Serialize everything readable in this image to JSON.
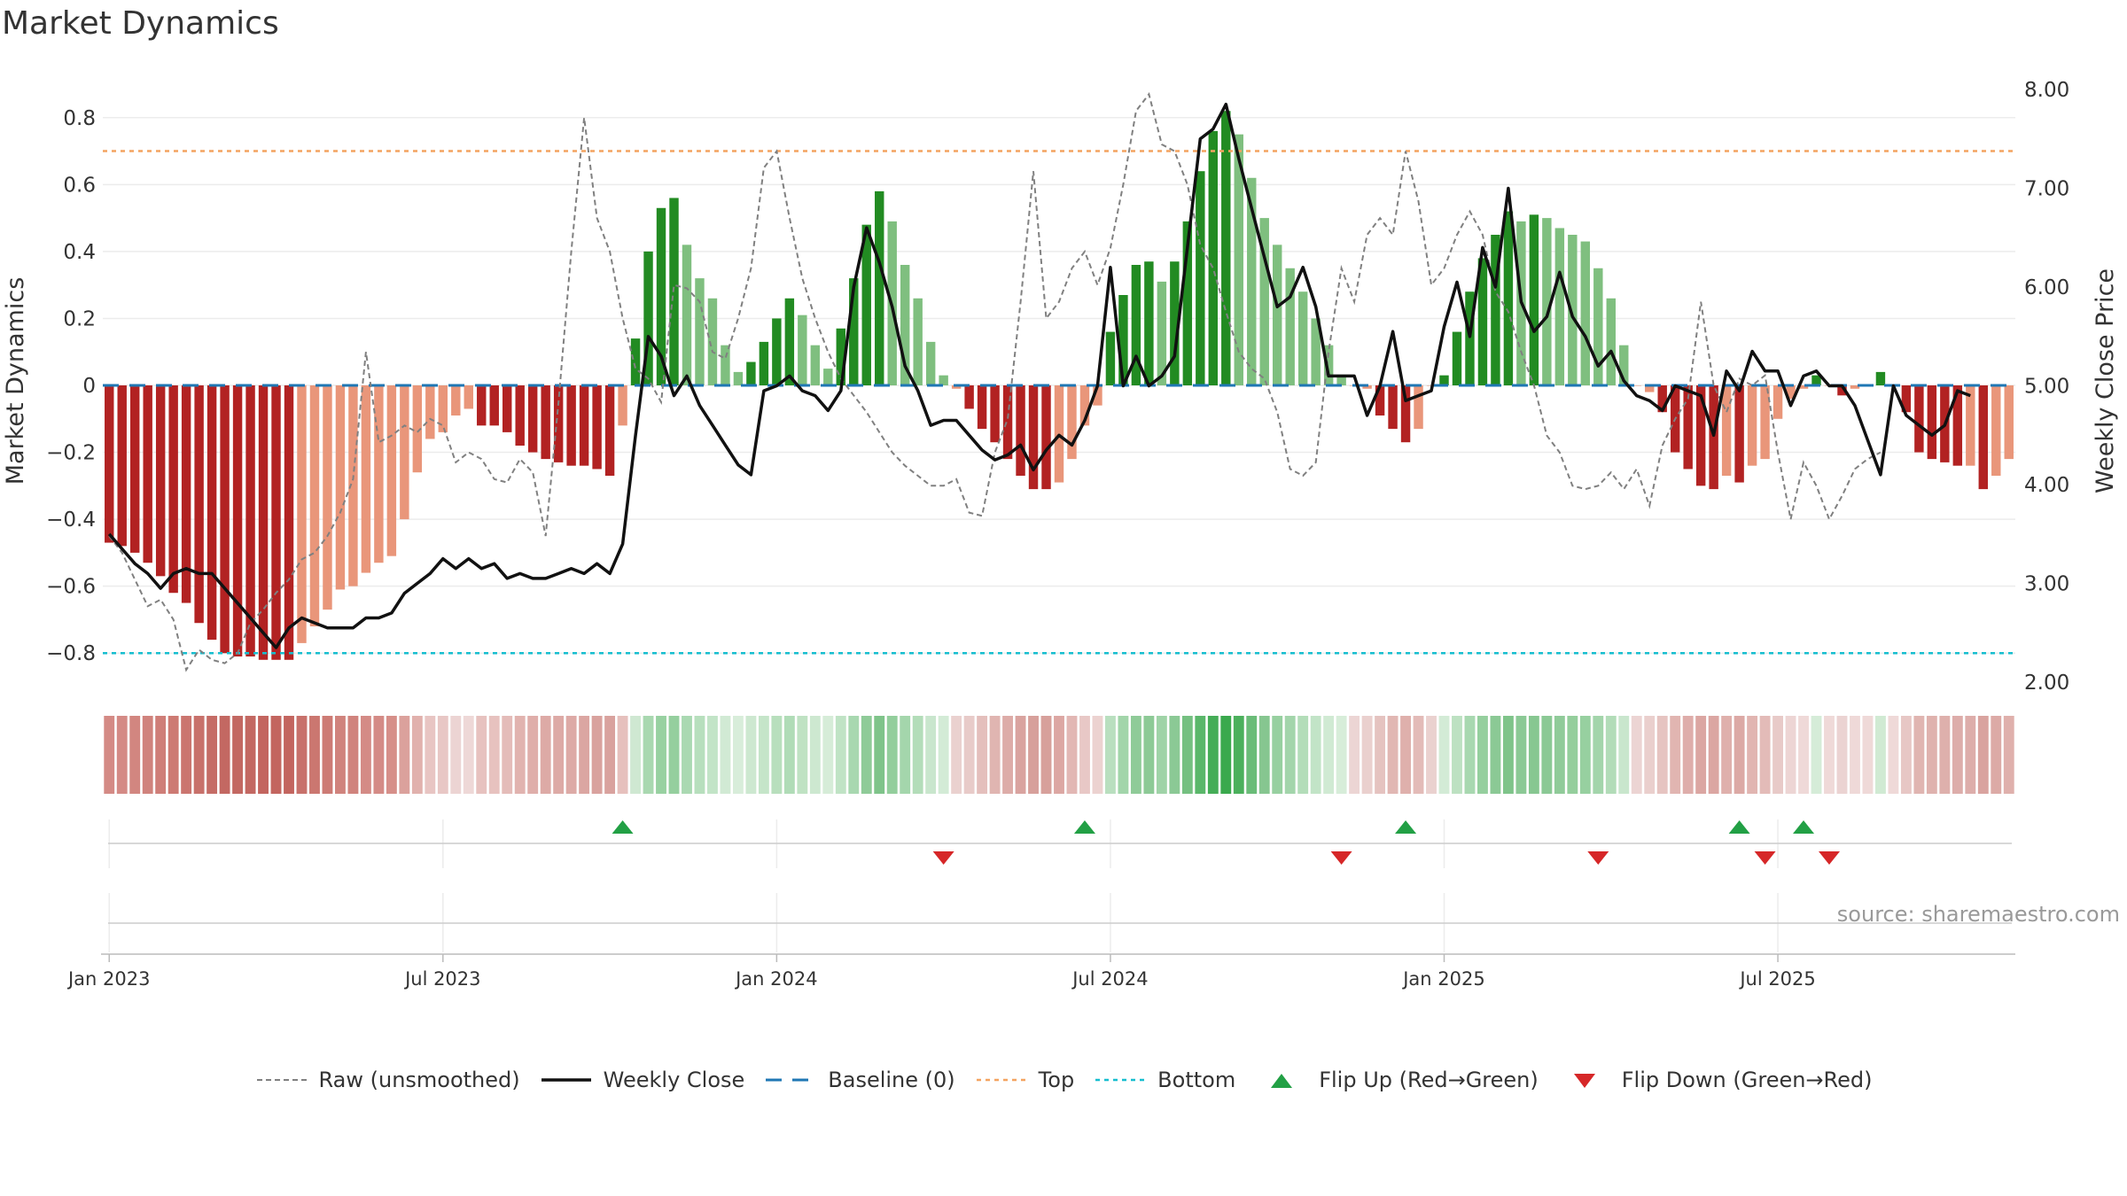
{
  "title": "Market Dynamics",
  "source": "source: sharemaestro.com",
  "chart_data": {
    "type": "bar",
    "y_left_label": "Market Dynamics",
    "y_right_label": "Weekly Close Price",
    "ylim_left": [
      -0.9,
      0.9
    ],
    "ylim_right": [
      2.0,
      8.0
    ],
    "left_ticks": [
      "0.8",
      "0.6",
      "0.4",
      "0.2",
      "0",
      "−0.2",
      "−0.4",
      "−0.6",
      "−0.8"
    ],
    "left_tick_values": [
      0.8,
      0.6,
      0.4,
      0.2,
      0,
      -0.2,
      -0.4,
      -0.6,
      -0.8
    ],
    "right_ticks": [
      "8.00",
      "7.00",
      "6.00",
      "5.00",
      "4.00",
      "3.00",
      "2.00"
    ],
    "right_tick_values": [
      8,
      7,
      6,
      5,
      4,
      3,
      2
    ],
    "x_ticks": [
      {
        "label": "Jan 2023",
        "week": 1
      },
      {
        "label": "Jul 2023",
        "week": 27
      },
      {
        "label": "Jan 2024",
        "week": 53
      },
      {
        "label": "Jul 2024",
        "week": 79
      },
      {
        "label": "Jan 2025",
        "week": 105
      },
      {
        "label": "Jul 2025",
        "week": 131
      }
    ],
    "top_line": 0.7,
    "bottom_line": -0.8,
    "baseline": 0,
    "colors": {
      "strong_red": "#b22222",
      "light_red": "#e9967a",
      "strong_green": "#228b22",
      "light_green": "#7fbf7f",
      "top_line": "#f4a460",
      "bottom_line": "#17becf",
      "baseline": "#1f77b4",
      "raw": "#808080",
      "close": "#111111",
      "flip_up": "#22a045",
      "flip_down": "#d62728"
    },
    "series": [
      {
        "name": "Raw (unsmoothed)",
        "values": [
          -0.45,
          -0.5,
          -0.58,
          -0.66,
          -0.64,
          -0.7,
          -0.85,
          -0.79,
          -0.82,
          -0.83,
          -0.8,
          -0.71,
          -0.67,
          -0.62,
          -0.58,
          -0.52,
          -0.5,
          -0.45,
          -0.38,
          -0.28,
          0.1,
          -0.17,
          -0.15,
          -0.12,
          -0.14,
          -0.1,
          -0.12,
          -0.23,
          -0.2,
          -0.22,
          -0.28,
          -0.29,
          -0.22,
          -0.26,
          -0.45,
          -0.05,
          0.4,
          0.8,
          0.5,
          0.4,
          0.2,
          0.05,
          0.02,
          -0.05,
          0.3,
          0.29,
          0.25,
          0.1,
          0.08,
          0.2,
          0.35,
          0.65,
          0.7,
          0.5,
          0.32,
          0.2,
          0.1,
          0.02,
          -0.03,
          -0.08,
          -0.14,
          -0.2,
          -0.24,
          -0.27,
          -0.3,
          -0.3,
          -0.28,
          -0.38,
          -0.39,
          -0.2,
          -0.1,
          0.25,
          0.64,
          0.2,
          0.25,
          0.35,
          0.4,
          0.3,
          0.41,
          0.6,
          0.82,
          0.87,
          0.72,
          0.7,
          0.6,
          0.42,
          0.35,
          0.22,
          0.1,
          0.05,
          0.02,
          -0.08,
          -0.25,
          -0.27,
          -0.23,
          0.1,
          0.35,
          0.25,
          0.45,
          0.5,
          0.45,
          0.7,
          0.55,
          0.3,
          0.35,
          0.45,
          0.52,
          0.45,
          0.28,
          0.22,
          0.1,
          0.0,
          -0.15,
          -0.2,
          -0.3,
          -0.31,
          -0.3,
          -0.26,
          -0.31,
          -0.25,
          -0.36,
          -0.18,
          -0.1,
          -0.04,
          0.25,
          0.0,
          -0.08,
          0.02,
          0.0,
          0.03,
          -0.2,
          -0.4,
          -0.23,
          -0.3,
          -0.4,
          -0.33,
          -0.25,
          -0.22,
          -0.2
        ]
      },
      {
        "name": "Weekly Close",
        "values": [
          3.5,
          3.35,
          3.2,
          3.1,
          2.95,
          3.1,
          3.15,
          3.1,
          3.1,
          2.95,
          2.8,
          2.65,
          2.5,
          2.35,
          2.55,
          2.65,
          2.6,
          2.55,
          2.55,
          2.55,
          2.65,
          2.65,
          2.7,
          2.9,
          3.0,
          3.1,
          3.25,
          3.15,
          3.25,
          3.15,
          3.2,
          3.05,
          3.1,
          3.05,
          3.05,
          3.1,
          3.15,
          3.1,
          3.2,
          3.1,
          3.4,
          4.5,
          5.5,
          5.3,
          4.9,
          5.1,
          4.8,
          4.6,
          4.4,
          4.2,
          4.1,
          4.95,
          5.0,
          5.1,
          4.95,
          4.9,
          4.75,
          4.95,
          6.0,
          6.6,
          6.25,
          5.8,
          5.2,
          4.95,
          4.6,
          4.65,
          4.65,
          4.5,
          4.35,
          4.25,
          4.3,
          4.4,
          4.15,
          4.35,
          4.5,
          4.4,
          4.65,
          5.0,
          6.2,
          5.0,
          5.3,
          5.0,
          5.1,
          5.3,
          6.4,
          7.5,
          7.6,
          7.85,
          7.3,
          6.8,
          6.3,
          5.8,
          5.9,
          6.2,
          5.8,
          5.1,
          5.1,
          5.1,
          4.7,
          5.0,
          5.55,
          4.85,
          4.9,
          4.95,
          5.6,
          6.05,
          5.5,
          6.4,
          6.0,
          7.0,
          5.85,
          5.55,
          5.7,
          6.15,
          5.7,
          5.5,
          5.2,
          5.35,
          5.05,
          4.9,
          4.85,
          4.75,
          5.0,
          4.95,
          4.9,
          4.5,
          5.15,
          4.95,
          5.35,
          5.15,
          5.15,
          4.8,
          5.1,
          5.15,
          5.0,
          5.0,
          4.8,
          4.45,
          4.1,
          5.0,
          4.7,
          4.6,
          4.5,
          4.6,
          4.95,
          4.9
        ]
      }
    ],
    "bars": [
      {
        "v": -0.47,
        "c": "sr"
      },
      {
        "v": -0.48,
        "c": "sr"
      },
      {
        "v": -0.5,
        "c": "sr"
      },
      {
        "v": -0.53,
        "c": "sr"
      },
      {
        "v": -0.57,
        "c": "sr"
      },
      {
        "v": -0.62,
        "c": "sr"
      },
      {
        "v": -0.65,
        "c": "sr"
      },
      {
        "v": -0.71,
        "c": "sr"
      },
      {
        "v": -0.76,
        "c": "sr"
      },
      {
        "v": -0.8,
        "c": "sr"
      },
      {
        "v": -0.81,
        "c": "sr"
      },
      {
        "v": -0.81,
        "c": "sr"
      },
      {
        "v": -0.82,
        "c": "sr"
      },
      {
        "v": -0.82,
        "c": "sr"
      },
      {
        "v": -0.82,
        "c": "sr"
      },
      {
        "v": -0.77,
        "c": "lr"
      },
      {
        "v": -0.72,
        "c": "lr"
      },
      {
        "v": -0.67,
        "c": "lr"
      },
      {
        "v": -0.61,
        "c": "lr"
      },
      {
        "v": -0.6,
        "c": "lr"
      },
      {
        "v": -0.56,
        "c": "lr"
      },
      {
        "v": -0.53,
        "c": "lr"
      },
      {
        "v": -0.51,
        "c": "lr"
      },
      {
        "v": -0.4,
        "c": "lr"
      },
      {
        "v": -0.26,
        "c": "lr"
      },
      {
        "v": -0.16,
        "c": "lr"
      },
      {
        "v": -0.14,
        "c": "lr"
      },
      {
        "v": -0.09,
        "c": "lr"
      },
      {
        "v": -0.07,
        "c": "lr"
      },
      {
        "v": -0.12,
        "c": "sr"
      },
      {
        "v": -0.12,
        "c": "sr"
      },
      {
        "v": -0.14,
        "c": "sr"
      },
      {
        "v": -0.18,
        "c": "sr"
      },
      {
        "v": -0.2,
        "c": "sr"
      },
      {
        "v": -0.22,
        "c": "sr"
      },
      {
        "v": -0.23,
        "c": "sr"
      },
      {
        "v": -0.24,
        "c": "sr"
      },
      {
        "v": -0.24,
        "c": "sr"
      },
      {
        "v": -0.25,
        "c": "sr"
      },
      {
        "v": -0.27,
        "c": "sr"
      },
      {
        "v": -0.12,
        "c": "lr"
      },
      {
        "v": 0.14,
        "c": "sg"
      },
      {
        "v": 0.4,
        "c": "sg"
      },
      {
        "v": 0.53,
        "c": "sg"
      },
      {
        "v": 0.56,
        "c": "sg"
      },
      {
        "v": 0.42,
        "c": "lg"
      },
      {
        "v": 0.32,
        "c": "lg"
      },
      {
        "v": 0.26,
        "c": "lg"
      },
      {
        "v": 0.12,
        "c": "lg"
      },
      {
        "v": 0.04,
        "c": "lg"
      },
      {
        "v": 0.07,
        "c": "sg"
      },
      {
        "v": 0.13,
        "c": "sg"
      },
      {
        "v": 0.2,
        "c": "sg"
      },
      {
        "v": 0.26,
        "c": "sg"
      },
      {
        "v": 0.21,
        "c": "lg"
      },
      {
        "v": 0.12,
        "c": "lg"
      },
      {
        "v": 0.05,
        "c": "lg"
      },
      {
        "v": 0.17,
        "c": "sg"
      },
      {
        "v": 0.32,
        "c": "sg"
      },
      {
        "v": 0.48,
        "c": "sg"
      },
      {
        "v": 0.58,
        "c": "sg"
      },
      {
        "v": 0.49,
        "c": "lg"
      },
      {
        "v": 0.36,
        "c": "lg"
      },
      {
        "v": 0.26,
        "c": "lg"
      },
      {
        "v": 0.13,
        "c": "lg"
      },
      {
        "v": 0.03,
        "c": "lg"
      },
      {
        "v": -0.01,
        "c": "lr"
      },
      {
        "v": -0.07,
        "c": "sr"
      },
      {
        "v": -0.13,
        "c": "sr"
      },
      {
        "v": -0.17,
        "c": "sr"
      },
      {
        "v": -0.22,
        "c": "sr"
      },
      {
        "v": -0.27,
        "c": "sr"
      },
      {
        "v": -0.31,
        "c": "sr"
      },
      {
        "v": -0.31,
        "c": "sr"
      },
      {
        "v": -0.29,
        "c": "lr"
      },
      {
        "v": -0.22,
        "c": "lr"
      },
      {
        "v": -0.12,
        "c": "lr"
      },
      {
        "v": -0.06,
        "c": "lr"
      },
      {
        "v": 0.16,
        "c": "sg"
      },
      {
        "v": 0.27,
        "c": "sg"
      },
      {
        "v": 0.36,
        "c": "sg"
      },
      {
        "v": 0.37,
        "c": "sg"
      },
      {
        "v": 0.31,
        "c": "lg"
      },
      {
        "v": 0.37,
        "c": "sg"
      },
      {
        "v": 0.49,
        "c": "sg"
      },
      {
        "v": 0.64,
        "c": "sg"
      },
      {
        "v": 0.76,
        "c": "sg"
      },
      {
        "v": 0.82,
        "c": "sg"
      },
      {
        "v": 0.75,
        "c": "lg"
      },
      {
        "v": 0.62,
        "c": "lg"
      },
      {
        "v": 0.5,
        "c": "lg"
      },
      {
        "v": 0.42,
        "c": "lg"
      },
      {
        "v": 0.35,
        "c": "lg"
      },
      {
        "v": 0.28,
        "c": "lg"
      },
      {
        "v": 0.2,
        "c": "lg"
      },
      {
        "v": 0.12,
        "c": "lg"
      },
      {
        "v": 0.03,
        "c": "lg"
      },
      {
        "v": 0.0,
        "c": "lr"
      },
      {
        "v": -0.01,
        "c": "lr"
      },
      {
        "v": -0.09,
        "c": "sr"
      },
      {
        "v": -0.13,
        "c": "sr"
      },
      {
        "v": -0.17,
        "c": "sr"
      },
      {
        "v": -0.13,
        "c": "lr"
      },
      {
        "v": 0.0,
        "c": "lr"
      },
      {
        "v": 0.03,
        "c": "sg"
      },
      {
        "v": 0.16,
        "c": "sg"
      },
      {
        "v": 0.28,
        "c": "sg"
      },
      {
        "v": 0.38,
        "c": "sg"
      },
      {
        "v": 0.45,
        "c": "sg"
      },
      {
        "v": 0.52,
        "c": "sg"
      },
      {
        "v": 0.49,
        "c": "lg"
      },
      {
        "v": 0.51,
        "c": "sg"
      },
      {
        "v": 0.5,
        "c": "lg"
      },
      {
        "v": 0.47,
        "c": "lg"
      },
      {
        "v": 0.45,
        "c": "lg"
      },
      {
        "v": 0.43,
        "c": "lg"
      },
      {
        "v": 0.35,
        "c": "lg"
      },
      {
        "v": 0.26,
        "c": "lg"
      },
      {
        "v": 0.12,
        "c": "lg"
      },
      {
        "v": 0.0,
        "c": "lr"
      },
      {
        "v": -0.02,
        "c": "lr"
      },
      {
        "v": -0.08,
        "c": "sr"
      },
      {
        "v": -0.2,
        "c": "sr"
      },
      {
        "v": -0.25,
        "c": "sr"
      },
      {
        "v": -0.3,
        "c": "sr"
      },
      {
        "v": -0.31,
        "c": "sr"
      },
      {
        "v": -0.27,
        "c": "lr"
      },
      {
        "v": -0.29,
        "c": "sr"
      },
      {
        "v": -0.24,
        "c": "lr"
      },
      {
        "v": -0.22,
        "c": "lr"
      },
      {
        "v": -0.1,
        "c": "lr"
      },
      {
        "v": -0.04,
        "c": "lr"
      },
      {
        "v": -0.01,
        "c": "lr"
      },
      {
        "v": 0.03,
        "c": "sg"
      },
      {
        "v": 0.0,
        "c": "lr"
      },
      {
        "v": -0.03,
        "c": "sr"
      },
      {
        "v": -0.01,
        "c": "lr"
      },
      {
        "v": 0.0,
        "c": "lr"
      },
      {
        "v": 0.04,
        "c": "sg"
      },
      {
        "v": 0.0,
        "c": "lr"
      },
      {
        "v": -0.08,
        "c": "sr"
      },
      {
        "v": -0.2,
        "c": "sr"
      },
      {
        "v": -0.22,
        "c": "sr"
      },
      {
        "v": -0.23,
        "c": "sr"
      },
      {
        "v": -0.24,
        "c": "sr"
      },
      {
        "v": -0.24,
        "c": "lr"
      },
      {
        "v": -0.31,
        "c": "sr"
      },
      {
        "v": -0.27,
        "c": "lr"
      },
      {
        "v": -0.22,
        "c": "lr"
      }
    ],
    "strip_colors": [
      "#d48a85",
      "#d48a85",
      "#d28680",
      "#d0837d",
      "#cf7e78",
      "#cd7a73",
      "#cb756f",
      "#c8716b",
      "#c56c66",
      "#c36862",
      "#c36862",
      "#c36862",
      "#c3655f",
      "#c3655f",
      "#c3655f",
      "#c8716b",
      "#cb7770",
      "#cd7b75",
      "#d0837d",
      "#d0837d",
      "#d48b86",
      "#d48b86",
      "#d68f89",
      "#dba19c",
      "#e1b1ad",
      "#e8c5c3",
      "#e8c7c5",
      "#ecd4d3",
      "#eed8d7",
      "#e7c2bf",
      "#e7c2bf",
      "#e4bcb9",
      "#e1b3af",
      "#dfaeaa",
      "#ddaaa6",
      "#ddaaa6",
      "#ddaaa6",
      "#dba6a2",
      "#d9a29e",
      "#d9a29e",
      "#e6c0bd",
      "#cfe8d2",
      "#a9d8b0",
      "#98d1a1",
      "#95cf9e",
      "#aad9b2",
      "#b7dfbd",
      "#c2e4c7",
      "#d1ead4",
      "#d8edda",
      "#cde8d0",
      "#c5e5c9",
      "#b8dfbd",
      "#b0dcb7",
      "#bfe2c3",
      "#cde8d0",
      "#d6ecd8",
      "#c0e3c5",
      "#a8d8b0",
      "#8fcb98",
      "#7fc48a",
      "#93ce9c",
      "#a4d6ac",
      "#b3ddb9",
      "#c9e6cd",
      "#d3ebd6",
      "#ead1cf",
      "#e8cbc9",
      "#e4bfbc",
      "#e0b5b1",
      "#ddaca8",
      "#d9a39f",
      "#d7a09b",
      "#d7a09b",
      "#dca7a3",
      "#e2b7b4",
      "#e8c8c6",
      "#ecd2d0",
      "#b9dfbf",
      "#a2d5aa",
      "#8fcb98",
      "#8dca96",
      "#9fd3a7",
      "#8bc995",
      "#75c081",
      "#5ab76a",
      "#45ad57",
      "#3aa94d",
      "#4bb05c",
      "#6abc78",
      "#86c690",
      "#97d0a0",
      "#a3d5ab",
      "#b3ddb9",
      "#c2e4c7",
      "#d0ead3",
      "#d7edd9",
      "#ecd5d4",
      "#ead0ce",
      "#e5c3c0",
      "#e1b7b3",
      "#dfb0ac",
      "#e3bbb8",
      "#ead1cf",
      "#d3ebd6",
      "#bde1c2",
      "#a8d8b0",
      "#95cf9e",
      "#8bc995",
      "#7fc48a",
      "#8bc995",
      "#87c791",
      "#8bc995",
      "#90cb99",
      "#94ce9c",
      "#97d0a0",
      "#a3d5ab",
      "#b2dcb8",
      "#c9e6cd",
      "#ecd4d3",
      "#eacfcd",
      "#e6c4c1",
      "#e1b5b1",
      "#deadaa",
      "#dba6a2",
      "#dba6a2",
      "#dfb0ac",
      "#dca9a5",
      "#e1b5b1",
      "#e3bbb8",
      "#e8cac8",
      "#edd5d4",
      "#efd9d8",
      "#d5ecd8",
      "#efd9d8",
      "#ebd3d2",
      "#efd9d8",
      "#efd9d8",
      "#d0ead3",
      "#efd9d8",
      "#e7c7c5",
      "#e0b5b1",
      "#dfb2ae",
      "#deb0ac",
      "#ddadaa",
      "#ddadaa",
      "#d9a39f",
      "#dcaaa6",
      "#dfb0ac"
    ],
    "flip_up_weeks": [
      41,
      77,
      102,
      128,
      133
    ],
    "flip_down_weeks": [
      66,
      97,
      117,
      130,
      135
    ],
    "legend": [
      {
        "key": "raw",
        "label": "Raw (unsmoothed)"
      },
      {
        "key": "close",
        "label": "Weekly Close"
      },
      {
        "key": "baseline",
        "label": "Baseline (0)"
      },
      {
        "key": "top",
        "label": "Top"
      },
      {
        "key": "bottom",
        "label": "Bottom"
      },
      {
        "key": "flip_up",
        "label": "Flip Up (Red→Green)"
      },
      {
        "key": "flip_down",
        "label": "Flip Down (Green→Red)"
      }
    ]
  }
}
